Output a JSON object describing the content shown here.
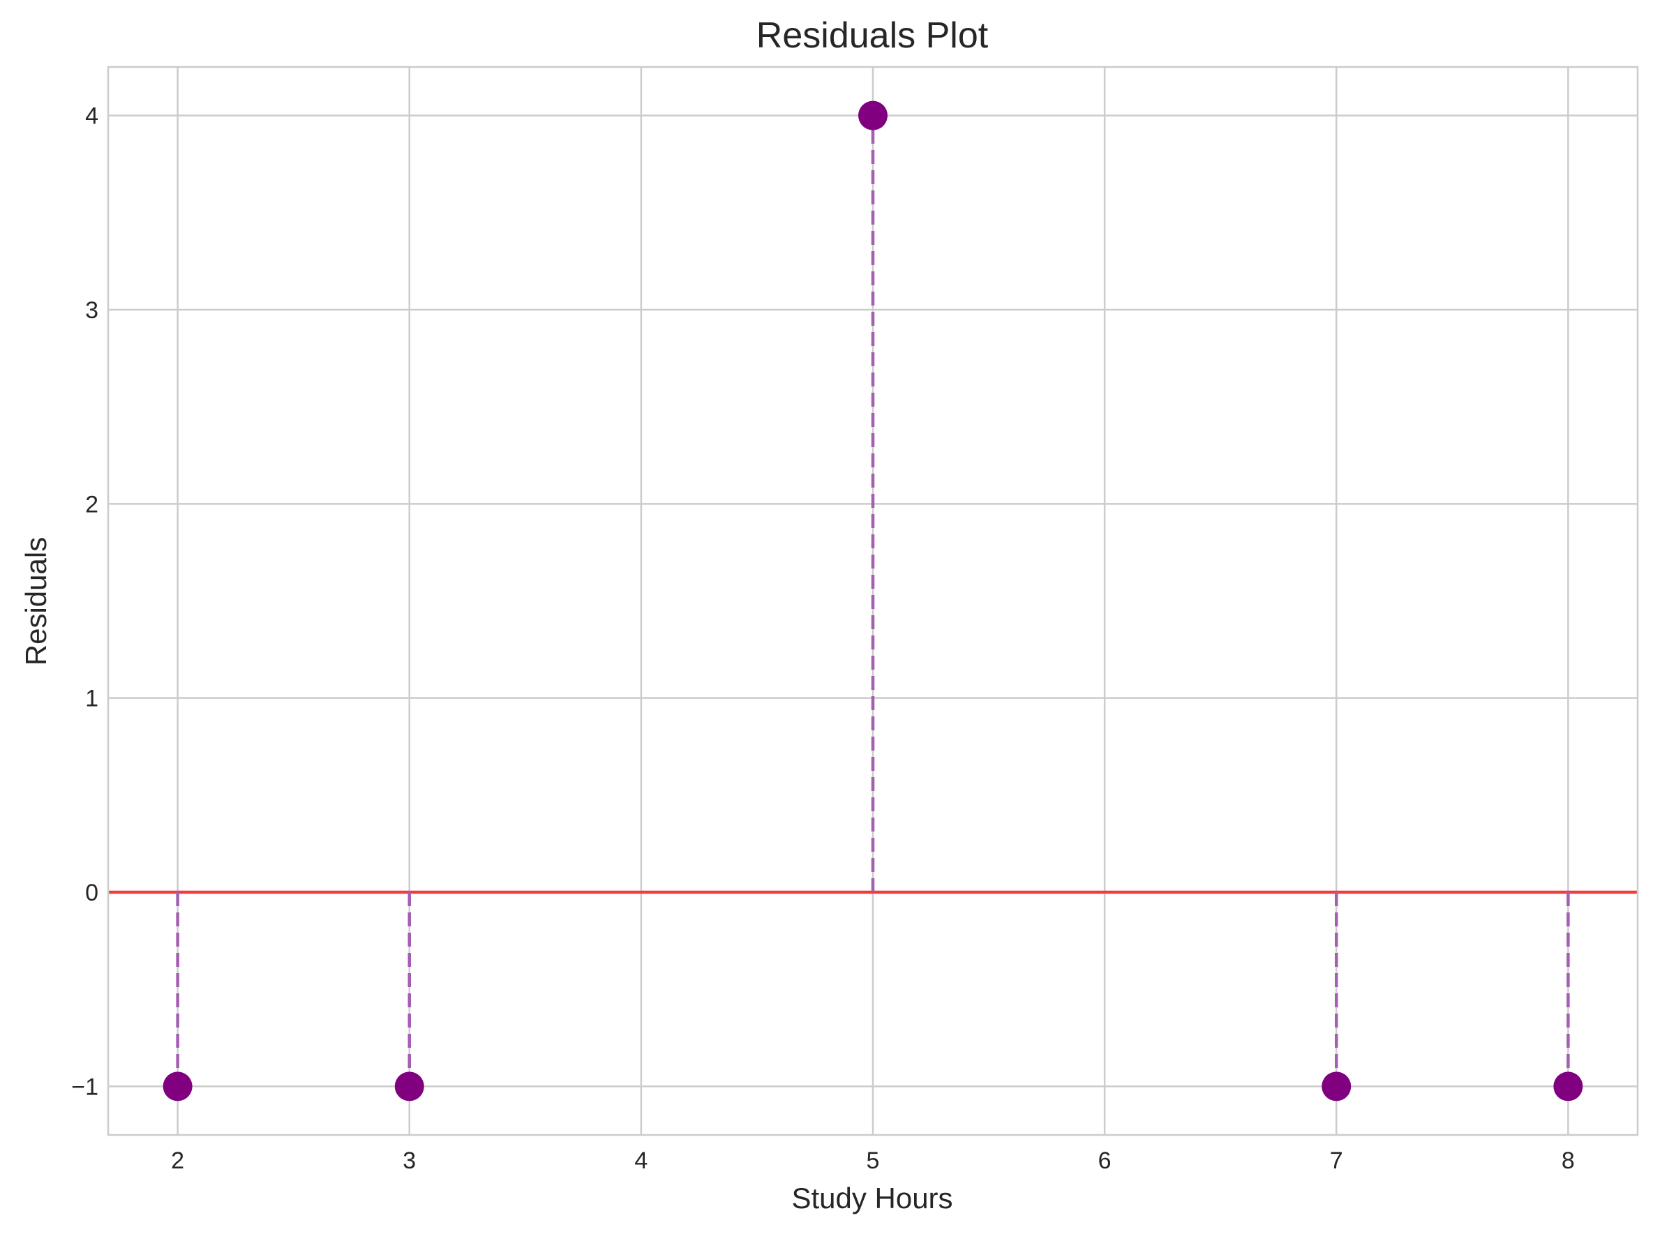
{
  "chart_data": {
    "type": "scatter",
    "title": "Residuals Plot",
    "xlabel": "Study Hours",
    "ylabel": "Residuals",
    "xlim": [
      1.7,
      8.3
    ],
    "ylim": [
      -1.25,
      4.25
    ],
    "xticks": [
      2,
      3,
      4,
      5,
      6,
      7,
      8
    ],
    "xtick_labels": [
      "2",
      "3",
      "4",
      "5",
      "6",
      "7",
      "8"
    ],
    "yticks": [
      -1,
      0,
      1,
      2,
      3,
      4
    ],
    "ytick_labels": [
      "−1",
      "0",
      "1",
      "2",
      "3",
      "4"
    ],
    "grid": true,
    "series": [
      {
        "x": [
          2,
          3,
          5,
          7,
          8
        ],
        "y": [
          -1,
          -1,
          4,
          -1,
          -1
        ],
        "marker_color": "#800080",
        "stem_color": "#a45fb1"
      }
    ],
    "reference_line": {
      "y": 0,
      "color": "#f03c3c"
    }
  }
}
